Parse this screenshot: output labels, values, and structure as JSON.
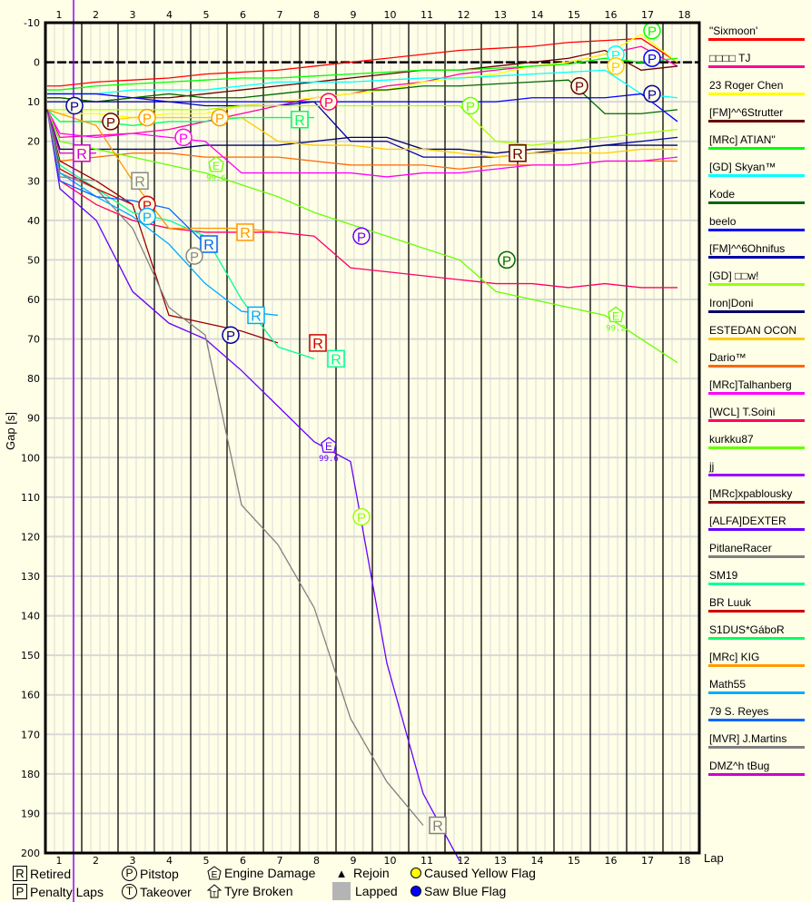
{
  "chart_data": {
    "type": "line",
    "title": "",
    "xlabel": "Lap",
    "ylabel": "Gap [s]",
    "x": [
      1,
      2,
      3,
      4,
      5,
      6,
      7,
      8,
      9,
      10,
      11,
      12,
      13,
      14,
      15,
      16,
      17,
      18
    ],
    "ylim": [
      -10,
      200
    ],
    "yticks": [
      -10,
      0,
      10,
      20,
      30,
      40,
      50,
      60,
      70,
      80,
      90,
      100,
      110,
      120,
      130,
      140,
      150,
      160,
      170,
      180,
      190,
      200
    ],
    "grid": true,
    "y_inverted": true,
    "legend_position": "right",
    "series": [
      {
        "name": "\"Sixmoon'",
        "color": "#ff0000",
        "values": [
          6,
          5,
          4.5,
          4,
          3,
          2.5,
          2,
          1,
          0,
          -1,
          -2,
          -3,
          -3.5,
          -4,
          -5,
          -5.5,
          -6,
          0
        ]
      },
      {
        "name": "□□□□ TJ",
        "color": "#ff00aa",
        "values": [
          19,
          18.5,
          18,
          17,
          15,
          13,
          11,
          9,
          8,
          6,
          5,
          3,
          2,
          1,
          0,
          -2,
          -4,
          1
        ]
      },
      {
        "name": "23 Roger Chen",
        "color": "#ffff00",
        "values": [
          13,
          13,
          14,
          13,
          13,
          11,
          10,
          9,
          8,
          7,
          5,
          4,
          3,
          1,
          0,
          -2,
          -7,
          0
        ]
      },
      {
        "name": "[FM]^^6Strutter",
        "color": "#660000",
        "values": [
          9,
          10,
          9,
          9,
          8,
          7,
          6,
          5,
          4,
          3,
          2,
          2,
          1,
          0,
          -1,
          -3,
          2,
          1
        ]
      },
      {
        "name": "[MRc] ATIAN\"",
        "color": "#00ff00",
        "values": [
          7,
          6,
          5.5,
          5,
          4.5,
          4,
          4,
          3.5,
          3,
          2.5,
          2,
          2,
          1.5,
          1,
          0.5,
          -1,
          0,
          -1
        ]
      },
      {
        "name": "[GD] Skyan™",
        "color": "#00ffff",
        "values": [
          8,
          8,
          7,
          7,
          7,
          6,
          5,
          5,
          5,
          4.5,
          4,
          4,
          3.5,
          3,
          2.5,
          2,
          8,
          9
        ]
      },
      {
        "name": "Kode",
        "color": "#006600",
        "values": [
          9,
          10,
          9,
          8,
          9,
          9,
          8,
          7,
          7,
          7,
          6,
          6,
          5.5,
          5,
          4.5,
          13,
          13,
          12
        ]
      },
      {
        "name": "beelo",
        "color": "#0000ff",
        "values": [
          8,
          8,
          9,
          10,
          10,
          10,
          10,
          10,
          10,
          10,
          10,
          10,
          10,
          9,
          9,
          9,
          8,
          15
        ]
      },
      {
        "name": "[FM]^^6Ohnifus",
        "color": "#0000aa",
        "values": [
          10,
          10,
          10,
          10,
          11,
          11,
          11,
          10,
          20,
          20,
          24,
          24,
          24,
          23,
          22,
          21,
          20,
          19
        ]
      },
      {
        "name": "[GD] □□w!",
        "color": "#aaff00",
        "values": [
          12,
          12,
          12,
          12,
          12,
          11,
          11,
          11,
          11,
          11,
          11,
          11,
          20,
          21,
          20,
          19,
          18,
          17
        ]
      },
      {
        "name": "Iron|Doni",
        "color": "#000066",
        "values": [
          22,
          22,
          22,
          22,
          21,
          21,
          21,
          20,
          19,
          19,
          22,
          22,
          23,
          22,
          22,
          21,
          21,
          21
        ]
      },
      {
        "name": "ESTEDAN OCON",
        "color": "#ffcc00",
        "values": [
          15,
          15,
          14,
          14,
          14,
          14,
          20,
          21,
          21,
          22,
          22,
          23,
          24,
          23,
          23,
          23,
          22,
          22
        ]
      },
      {
        "name": "Dario™",
        "color": "#ff6600",
        "values": [
          25,
          24,
          23,
          23,
          24,
          24,
          24,
          25,
          26,
          26,
          26,
          27,
          26,
          26,
          26,
          25,
          25,
          25
        ]
      },
      {
        "name": "[MRc]Talhanberg",
        "color": "#ff00ff",
        "values": [
          18,
          19,
          18,
          19,
          20,
          28,
          28,
          28,
          28,
          29,
          28,
          28,
          27,
          26,
          26,
          25,
          25,
          24
        ]
      },
      {
        "name": "[WCL] T.Soini",
        "color": "#ff0066",
        "values": [
          30,
          36,
          40,
          42,
          43,
          43,
          43,
          44,
          52,
          53,
          54,
          55,
          56,
          56,
          57,
          56,
          57,
          57
        ]
      },
      {
        "name": "kurkku87",
        "color": "#66ff00",
        "values": [
          20,
          22,
          24,
          26,
          28,
          31,
          34,
          38,
          41,
          44,
          47,
          50,
          58,
          60,
          62,
          64,
          70,
          76
        ]
      },
      {
        "name": "jj",
        "color": "#9900ff",
        "values": [
          null
        ]
      },
      {
        "name": "[MRc]xpablousky",
        "color": "#990000",
        "values": [
          25,
          30,
          36,
          64,
          66,
          68,
          71
        ]
      },
      {
        "name": "[ALFA]DEXTER",
        "color": "#6600ff",
        "values": [
          32,
          40,
          58,
          66,
          70,
          78,
          87,
          96,
          101,
          152,
          185,
          202
        ]
      },
      {
        "name": "PitlaneRacer",
        "color": "#808080",
        "values": [
          28,
          32,
          42,
          62,
          69,
          112,
          122,
          138,
          166,
          182,
          193
        ]
      },
      {
        "name": "SM19",
        "color": "#00ff99",
        "values": [
          26,
          32,
          38,
          40,
          44,
          60,
          72,
          75
        ]
      },
      {
        "name": "BR Luuk",
        "color": "#cc0000",
        "values": [
          27,
          32,
          36
        ]
      },
      {
        "name": "S1DUS*GáboR",
        "color": "#00ff66",
        "values": [
          15,
          15,
          16,
          15,
          15,
          14,
          14,
          14
        ]
      },
      {
        "name": "[MRc] KIG",
        "color": "#ff9900",
        "values": [
          13,
          16,
          30,
          42,
          42,
          42,
          43
        ]
      },
      {
        "name": "Math55",
        "color": "#00aaff",
        "values": [
          28,
          34,
          39,
          46,
          56,
          63,
          64
        ]
      },
      {
        "name": "79 S. Reyes",
        "color": "#0066ff",
        "values": [
          30,
          34,
          35,
          37,
          46
        ]
      },
      {
        "name": "[MVR] J.Martins",
        "color": "#888888",
        "values": [
          29,
          30
        ]
      },
      {
        "name": "DMZ^h tBug",
        "color": "#cc00cc",
        "values": [
          23,
          23
        ]
      }
    ],
    "annotations": [
      {
        "type": "Retired",
        "lap": 1.6,
        "gap": 23,
        "series": "DMZ^h tBug"
      },
      {
        "type": "Retired",
        "lap": 3.2,
        "gap": 30,
        "series": "[MVR] J.Martins"
      },
      {
        "type": "Retired",
        "lap": 5.1,
        "gap": 46,
        "series": "79 S. Reyes"
      },
      {
        "type": "Retired",
        "lap": 6.1,
        "gap": 43,
        "series": "[MRc] KIG"
      },
      {
        "type": "Retired",
        "lap": 6.4,
        "gap": 64,
        "series": "Math55"
      },
      {
        "type": "Retired",
        "lap": 7.6,
        "gap": 14.5,
        "series": "S1DUS*GáboR"
      },
      {
        "type": "Retired",
        "lap": 8.1,
        "gap": 71,
        "series": "BR Luuk"
      },
      {
        "type": "Retired",
        "lap": 8.6,
        "gap": 75,
        "series": "SM19"
      },
      {
        "type": "Retired",
        "lap": 11.4,
        "gap": 193,
        "series": "PitlaneRacer"
      },
      {
        "type": "Retired",
        "lap": 13.6,
        "gap": 23,
        "series": "[FM]^^6Strutter"
      },
      {
        "type": "Pitstop",
        "lap": 1.4,
        "gap": 11
      },
      {
        "type": "Pitstop",
        "lap": 2.4,
        "gap": 15
      },
      {
        "type": "Pitstop",
        "lap": 3.4,
        "gap": 14
      },
      {
        "type": "Pitstop",
        "lap": 3.4,
        "gap": 36
      },
      {
        "type": "Pitstop",
        "lap": 3.4,
        "gap": 39
      },
      {
        "type": "Pitstop",
        "lap": 4.4,
        "gap": 19
      },
      {
        "type": "Pitstop",
        "lap": 4.7,
        "gap": 49
      },
      {
        "type": "Pitstop",
        "lap": 5.4,
        "gap": 14
      },
      {
        "type": "Pitstop",
        "lap": 5.7,
        "gap": 69
      },
      {
        "type": "Pitstop",
        "lap": 8.4,
        "gap": 10
      },
      {
        "type": "Pitstop",
        "lap": 9.3,
        "gap": 44
      },
      {
        "type": "Pitstop",
        "lap": 9.3,
        "gap": 115
      },
      {
        "type": "Pitstop",
        "lap": 12.3,
        "gap": 11
      },
      {
        "type": "Pitstop",
        "lap": 13.3,
        "gap": 50
      },
      {
        "type": "Pitstop",
        "lap": 15.3,
        "gap": 6
      },
      {
        "type": "Pitstop",
        "lap": 16.3,
        "gap": -2
      },
      {
        "type": "Pitstop",
        "lap": 16.3,
        "gap": 1
      },
      {
        "type": "Pitstop",
        "lap": 17.3,
        "gap": -8
      },
      {
        "type": "Pitstop",
        "lap": 17.3,
        "gap": -1
      },
      {
        "type": "Pitstop",
        "lap": 17.3,
        "gap": 8
      },
      {
        "type": "Engine Damage",
        "lap": 5.3,
        "gap": 26,
        "label": "99.6"
      },
      {
        "type": "Engine Damage",
        "lap": 8.4,
        "gap": 97,
        "label": "99.6"
      },
      {
        "type": "Engine Damage",
        "lap": 16.3,
        "gap": 64,
        "label": "99.2"
      }
    ]
  },
  "axis": {
    "x_top_ticks": [
      "1",
      "2",
      "3",
      "4",
      "5",
      "6",
      "7",
      "8",
      "9",
      "10",
      "11",
      "12",
      "13",
      "14",
      "15",
      "16",
      "17",
      "18"
    ],
    "x_bottom_ticks": [
      "1",
      "2",
      "3",
      "4",
      "5",
      "6",
      "7",
      "8",
      "9",
      "10",
      "11",
      "12",
      "13",
      "14",
      "15",
      "16",
      "17",
      "18"
    ],
    "x_label": "Lap",
    "y_label": "Gap [s]",
    "y_ticks": [
      "-10",
      "0",
      "10",
      "20",
      "30",
      "40",
      "50",
      "60",
      "70",
      "80",
      "90",
      "100",
      "110",
      "120",
      "130",
      "140",
      "150",
      "160",
      "170",
      "180",
      "190",
      "200"
    ]
  },
  "legend_right": [
    {
      "name": "\"Sixmoon'",
      "color": "#ff0000"
    },
    {
      "name": "□□□□ TJ",
      "color": "#ff0099"
    },
    {
      "name": "23 Roger Chen",
      "color": "#ffff00"
    },
    {
      "name": "[FM]^^6Strutter",
      "color": "#660000"
    },
    {
      "name": "[MRc] ATIAN\"",
      "color": "#00ff00"
    },
    {
      "name": "[GD] Skyan™",
      "color": "#00ffff"
    },
    {
      "name": "Kode",
      "color": "#006600"
    },
    {
      "name": "beelo",
      "color": "#0000ff"
    },
    {
      "name": "[FM]^^6Ohnifus",
      "color": "#0000aa"
    },
    {
      "name": "[GD] □□w!",
      "color": "#99ff00"
    },
    {
      "name": "Iron|Doni",
      "color": "#000066"
    },
    {
      "name": "ESTEDAN OCON",
      "color": "#ffcc00"
    },
    {
      "name": "Dario™",
      "color": "#ff6600"
    },
    {
      "name": "[MRc]Talhanberg",
      "color": "#ff00ff"
    },
    {
      "name": "[WCL] T.Soini",
      "color": "#ff0066"
    },
    {
      "name": "kurkku87",
      "color": "#66ff00"
    },
    {
      "name": "jj",
      "color": "#9900ff"
    },
    {
      "name": "[MRc]xpablousky",
      "color": "#990000"
    },
    {
      "name": "[ALFA]DEXTER",
      "color": "#6600ff"
    },
    {
      "name": "PitlaneRacer",
      "color": "#808080"
    },
    {
      "name": "SM19",
      "color": "#00ff99"
    },
    {
      "name": "BR Luuk",
      "color": "#cc0000"
    },
    {
      "name": "S1DUS*GáboR",
      "color": "#00ff66"
    },
    {
      "name": "[MRc] KIG",
      "color": "#ff9900"
    },
    {
      "name": "Math55",
      "color": "#00aaff"
    },
    {
      "name": "79 S. Reyes",
      "color": "#0066ff"
    },
    {
      "name": "[MVR] J.Martins",
      "color": "#808080"
    },
    {
      "name": "DMZ^h tBug",
      "color": "#cc00cc"
    }
  ],
  "legend_bottom": {
    "retired": {
      "symbol": "R",
      "label": "Retired"
    },
    "penalty": {
      "symbol": "P",
      "label": "Penalty Laps"
    },
    "pitstop": {
      "symbol": "P",
      "label": "Pitstop"
    },
    "takeover": {
      "symbol": "T",
      "label": "Takeover"
    },
    "engine": {
      "symbol": "E",
      "label": "Engine Damage"
    },
    "tyre": {
      "symbol": "T",
      "label": "Tyre Broken"
    },
    "rejoin": {
      "symbol": "▲",
      "label": "Rejoin"
    },
    "lapped": {
      "label": "Lapped"
    },
    "yellow": {
      "label": "Caused Yellow Flag"
    },
    "blue": {
      "label": "Saw Blue Flag"
    }
  }
}
